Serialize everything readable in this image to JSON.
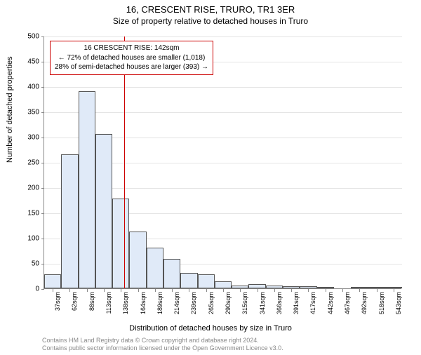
{
  "title_main": "16, CRESCENT RISE, TRURO, TR1 3ER",
  "title_sub": "Size of property relative to detached houses in Truro",
  "y_axis_label": "Number of detached properties",
  "x_axis_label": "Distribution of detached houses by size in Truro",
  "footer_line1": "Contains HM Land Registry data © Crown copyright and database right 2024.",
  "footer_line2": "Contains public sector information licensed under the Open Government Licence v3.0.",
  "chart": {
    "type": "histogram",
    "ylim": [
      0,
      500
    ],
    "ytick_step": 50,
    "yticks": [
      0,
      50,
      100,
      150,
      200,
      250,
      300,
      350,
      400,
      450,
      500
    ],
    "x_categories": [
      "37sqm",
      "62sqm",
      "88sqm",
      "113sqm",
      "138sqm",
      "164sqm",
      "189sqm",
      "214sqm",
      "239sqm",
      "265sqm",
      "290sqm",
      "315sqm",
      "341sqm",
      "366sqm",
      "391sqm",
      "417sqm",
      "442sqm",
      "467sqm",
      "492sqm",
      "518sqm",
      "543sqm"
    ],
    "values": [
      28,
      265,
      390,
      305,
      178,
      112,
      80,
      58,
      30,
      28,
      14,
      6,
      8,
      5,
      4,
      4,
      3,
      0,
      3,
      2,
      2
    ],
    "bar_fill": "#e0eaf8",
    "bar_border": "#555555",
    "grid_color": "#e4e4e4",
    "axis_color": "#888888",
    "background_color": "#ffffff",
    "bar_width_ratio": 1.0,
    "marker": {
      "position_sqm": 142,
      "color": "#cc0000"
    },
    "annotation": {
      "line1": "16 CRESCENT RISE: 142sqm",
      "line2": "← 72% of detached houses are smaller (1,018)",
      "line3": "28% of semi-detached houses are larger (393) →",
      "border_color": "#cc0000",
      "font_size": 10
    }
  }
}
